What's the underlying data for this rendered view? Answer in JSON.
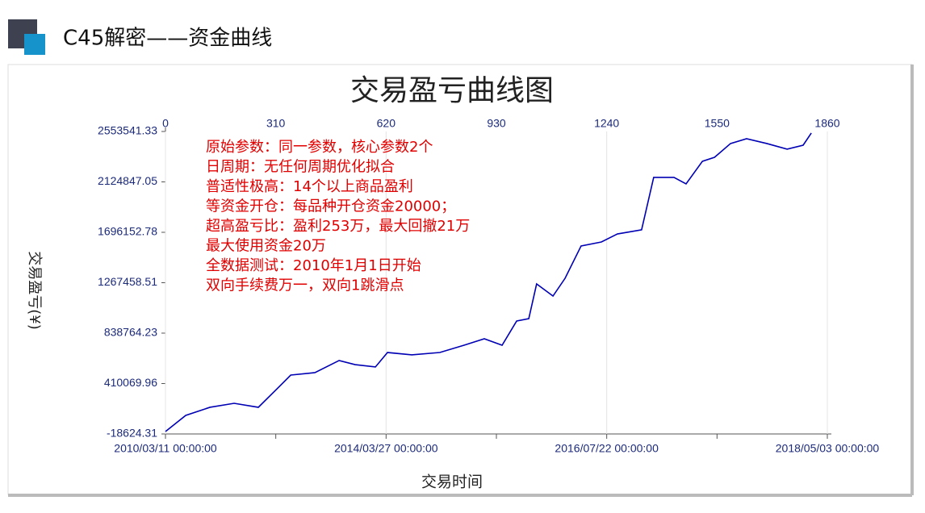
{
  "header": {
    "title": "C45解密——资金曲线"
  },
  "chart_data": {
    "type": "line",
    "title": "交易盈亏曲线图",
    "y_label": "交易盈亏(¥)",
    "x_label": "交易时间",
    "annotations": [
      "原始参数：同一参数，核心参数2个",
      "日周期：无任何周期优化拟合",
      "普适性极高：14个以上商品盈利",
      "等资金开仓：每品种开仓资金20000；",
      "超高盈亏比：盈利253万，最大回撤21万",
      "最大使用资金20万",
      "全数据测试：2010年1月1日开始",
      "双向手续费万一，双向1跳滑点"
    ],
    "xlim": [
      0,
      1860
    ],
    "xticks": [
      0,
      310,
      620,
      930,
      1240,
      1550,
      1860
    ],
    "date_ticks": [
      {
        "value": 0,
        "label": "2010/03/11 00:00:00"
      },
      {
        "value": 620,
        "label": "2014/03/27 00:00:00"
      },
      {
        "value": 1240,
        "label": "2016/07/22 00:00:00"
      },
      {
        "value": 1860,
        "label": "2018/05/03 00:00:00"
      }
    ],
    "ylim": [
      -18624.31,
      2553541.33
    ],
    "yticks": [
      -18624.31,
      410069.96,
      838764.23,
      1267458.51,
      1696152.78,
      2124847.05,
      2553541.33
    ],
    "series": [
      {
        "color": "#0000b4",
        "x": [
          0,
          57,
          125,
          193,
          261,
          318,
          352,
          420,
          488,
          533,
          590,
          624,
          692,
          771,
          839,
          896,
          946,
          987,
          1021,
          1043,
          1089,
          1123,
          1168,
          1225,
          1270,
          1338,
          1372,
          1429,
          1463,
          1509,
          1543,
          1588,
          1633,
          1690,
          1747,
          1792,
          1815
        ],
        "values": [
          2000,
          139000,
          208000,
          242000,
          208000,
          379000,
          482000,
          503000,
          606000,
          571000,
          551000,
          674000,
          654000,
          674000,
          736000,
          791000,
          736000,
          942000,
          962000,
          1257000,
          1154000,
          1305000,
          1580000,
          1614000,
          1682000,
          1717000,
          2163000,
          2163000,
          2108000,
          2300000,
          2334000,
          2451000,
          2492000,
          2451000,
          2403000,
          2437000,
          2540000
        ]
      }
    ]
  }
}
